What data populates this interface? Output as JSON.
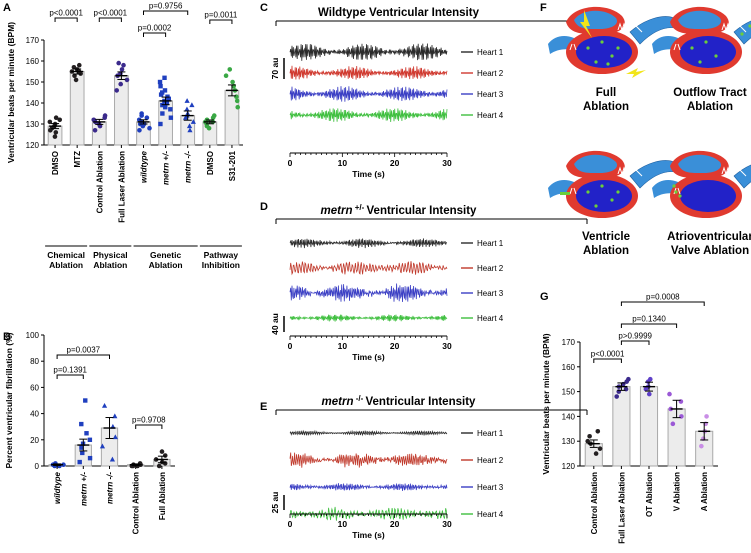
{
  "panels": {
    "A": {
      "letter": "A",
      "chart_data": {
        "type": "bar",
        "ylabel": "Ventricular beats per minute (BPM)",
        "ylim": [
          120,
          170
        ],
        "yticks": [
          120,
          130,
          140,
          150,
          160,
          170
        ],
        "categories": [
          "DMSO",
          "MTZ",
          "Control Ablation",
          "Full Laser Ablation",
          "wildtype",
          "metrn +/-",
          "metrn -/-",
          "DMSO",
          "S31-201"
        ],
        "italic": [
          false,
          false,
          false,
          false,
          true,
          true,
          true,
          false,
          false
        ],
        "colors": [
          "#231f20",
          "#231f20",
          "#3b2a8c",
          "#3b2a8c",
          "#1f3fbf",
          "#1f3fbf",
          "#1f3fbf",
          "#3aa845",
          "#3aa845"
        ],
        "values": [
          129,
          155,
          131,
          153,
          131,
          141,
          134,
          131,
          146
        ],
        "errors": [
          1.2,
          1.2,
          1.2,
          1.8,
          1.0,
          1.8,
          2.2,
          0.9,
          2.6
        ],
        "points": [
          [
            124,
            126,
            127,
            128,
            129,
            130,
            131,
            132,
            133
          ],
          [
            151,
            153,
            154,
            155,
            155,
            156,
            157,
            158
          ],
          [
            127,
            129,
            130,
            131,
            132,
            133,
            134
          ],
          [
            146,
            149,
            151,
            153,
            154,
            156,
            158,
            159
          ],
          [
            127,
            128,
            129,
            130,
            130,
            131,
            132,
            133,
            134,
            135
          ],
          [
            130,
            133,
            135,
            137,
            138,
            139,
            140,
            141,
            142,
            143,
            144,
            145,
            146,
            148,
            150,
            152
          ],
          [
            127,
            129,
            131,
            133,
            134,
            135,
            137,
            139,
            141
          ],
          [
            128,
            129,
            130,
            131,
            131,
            132,
            133,
            134
          ],
          [
            138,
            141,
            143,
            146,
            148,
            150,
            153,
            156
          ]
        ],
        "markers": [
          "circle",
          "circle",
          "circle",
          "circle",
          "circle",
          "square",
          "triangle",
          "circle",
          "circle"
        ],
        "comparisons": [
          {
            "from": 0,
            "to": 1,
            "label": "p<0.0001"
          },
          {
            "from": 2,
            "to": 3,
            "label": "p<0.0001"
          },
          {
            "from": 4,
            "to": 5,
            "label": "p=0.0002"
          },
          {
            "from": 4,
            "to": 6,
            "label": "p=0.9756"
          },
          {
            "from": 7,
            "to": 8,
            "label": "p=0.0011"
          }
        ],
        "groups": [
          {
            "label": [
              "Chemical",
              "Ablation"
            ],
            "from": 0,
            "to": 1
          },
          {
            "label": [
              "Physical",
              "Ablation"
            ],
            "from": 2,
            "to": 3
          },
          {
            "label": [
              "Genetic",
              "Ablation"
            ],
            "from": 4,
            "to": 6
          },
          {
            "label": [
              "Pathway",
              "Inhibition"
            ],
            "from": 7,
            "to": 8
          }
        ]
      }
    },
    "B": {
      "letter": "B",
      "chart_data": {
        "type": "bar",
        "ylabel": "Percent ventricular fibrillation (%)",
        "ylim": [
          0,
          100
        ],
        "yticks": [
          0,
          20,
          40,
          60,
          80,
          100
        ],
        "categories": [
          "wildtype",
          "metrn +/-",
          "metrn -/-",
          "Control Ablation",
          "Full Ablation"
        ],
        "italic": [
          true,
          true,
          true,
          false,
          false
        ],
        "colors": [
          "#1f3fbf",
          "#1f3fbf",
          "#1f3fbf",
          "#231f20",
          "#231f20"
        ],
        "values": [
          1,
          16,
          29,
          1,
          5
        ],
        "errors": [
          0.6,
          4.5,
          8,
          0.6,
          2.5
        ],
        "points": [
          [
            0,
            1,
            1,
            2,
            0
          ],
          [
            3,
            6,
            10,
            14,
            17,
            20,
            25,
            32,
            50
          ],
          [
            5,
            15,
            22,
            30,
            38,
            46
          ],
          [
            0,
            0,
            1,
            0,
            2,
            1
          ],
          [
            0,
            2,
            5,
            8,
            11,
            3
          ]
        ],
        "markers": [
          "circle",
          "square",
          "triangle",
          "circle",
          "circle"
        ],
        "comparisons": [
          {
            "from": 0,
            "to": 1,
            "label": "p=0.1391"
          },
          {
            "from": 0,
            "to": 2,
            "label": "p=0.0037"
          },
          {
            "from": 3,
            "to": 4,
            "label": "p=0.9708"
          }
        ]
      }
    },
    "C": {
      "letter": "C",
      "title": "Wildtype Ventricular Intensity",
      "title_parts": [],
      "xlabel": "Time (s)",
      "xticks": [
        0,
        10,
        20,
        30
      ],
      "scale_label": "70 au",
      "traces": [
        {
          "name": "Heart 1",
          "color": "#2b2b2b",
          "amp": 0.95,
          "freq": 2.7,
          "noise": 0.1
        },
        {
          "name": "Heart 2",
          "color": "#d0392f",
          "amp": 0.75,
          "freq": 2.6,
          "noise": 0.1
        },
        {
          "name": "Heart 3",
          "color": "#3b3fc4",
          "amp": 0.85,
          "freq": 2.6,
          "noise": 0.1
        },
        {
          "name": "Heart 4",
          "color": "#3fbf3f",
          "amp": 0.75,
          "freq": 2.6,
          "noise": 0.1
        }
      ]
    },
    "D": {
      "letter": "D",
      "title_parts": [
        {
          "t": "metrn",
          "i": true
        },
        {
          "t": " +/- ",
          "sup": true
        },
        {
          "t": "Ventricular Intensity",
          "i": false
        }
      ],
      "xlabel": "Time (s)",
      "xticks": [
        0,
        10,
        20,
        30
      ],
      "scale_label": "40 au",
      "traces": [
        {
          "name": "Heart 1",
          "color": "#2b2b2b",
          "amp": 0.45,
          "freq": 2.5,
          "noise": 0.15
        },
        {
          "name": "Heart 2",
          "color": "#c0392b",
          "amp": 0.55,
          "freq": 1.4,
          "noise": 0.35
        },
        {
          "name": "Heart 3",
          "color": "#3b3fc4",
          "amp": 0.85,
          "freq": 2.4,
          "noise": 0.25
        },
        {
          "name": "Heart 4",
          "color": "#3fbf3f",
          "amp": 0.35,
          "freq": 2.8,
          "noise": 0.1
        }
      ]
    },
    "E": {
      "letter": "E",
      "title_parts": [
        {
          "t": "metrn",
          "i": true
        },
        {
          "t": " -/- ",
          "sup": true
        },
        {
          "t": "Ventricular Intensity",
          "i": false
        }
      ],
      "xlabel": "Time (s)",
      "xticks": [
        0,
        10,
        20,
        30
      ],
      "scale_label": "25 au",
      "traces": [
        {
          "name": "Heart 1",
          "color": "#2b2b2b",
          "amp": 0.25,
          "freq": 2.2,
          "noise": 0.1
        },
        {
          "name": "Heart 2",
          "color": "#c0392b",
          "amp": 0.7,
          "freq": 2.0,
          "noise": 0.35
        },
        {
          "name": "Heart 3",
          "color": "#3b3fc4",
          "amp": 0.4,
          "freq": 2.4,
          "noise": 0.2
        },
        {
          "name": "Heart 4",
          "color": "#3fbf3f",
          "amp": 0.55,
          "freq": 1.3,
          "noise": 0.45
        }
      ]
    },
    "F": {
      "letter": "F",
      "labels": [
        [
          "Full",
          "Ablation"
        ],
        [
          "Outflow Tract",
          "Ablation"
        ],
        [
          "Ventricle",
          "Ablation"
        ],
        [
          "Atrioventricular",
          "Valve Ablation"
        ]
      ],
      "colors": {
        "atrium": "#3a8fd8",
        "ventricle": "#2222c8",
        "outer": "#e03a2f",
        "laser": "#f2e51a",
        "spot": "#6ccf3a"
      }
    },
    "G": {
      "letter": "G",
      "chart_data": {
        "type": "bar",
        "ylabel": "Ventricular beats per minute (BPM)",
        "ylim": [
          120,
          170
        ],
        "yticks": [
          120,
          130,
          140,
          150,
          160,
          170
        ],
        "categories": [
          "Control Ablation",
          "Full Laser Ablation",
          "OT Ablation",
          "V Ablation",
          "A Ablation"
        ],
        "italic": [
          false,
          false,
          false,
          false,
          false
        ],
        "colors": [
          "#231f20",
          "#3b2a8c",
          "#5e3fc8",
          "#9b59d6",
          "#c98ee6"
        ],
        "values": [
          129,
          152,
          152,
          143,
          134
        ],
        "errors": [
          1.5,
          1.5,
          1.8,
          3.5,
          3.5
        ],
        "points": [
          [
            125,
            127,
            129,
            130,
            132,
            134
          ],
          [
            148,
            150,
            151,
            152,
            153,
            154,
            155
          ],
          [
            149,
            151,
            152,
            154,
            155
          ],
          [
            137,
            140,
            143,
            146,
            149
          ],
          [
            128,
            131,
            134,
            137,
            140
          ]
        ],
        "markers": [
          "circle",
          "circle",
          "circle",
          "circle",
          "circle"
        ],
        "comparisons": [
          {
            "from": 0,
            "to": 1,
            "label": "p<0.0001"
          },
          {
            "from": 1,
            "to": 2,
            "label": "p>0.9999"
          },
          {
            "from": 1,
            "to": 3,
            "label": "p=0.1340"
          },
          {
            "from": 1,
            "to": 4,
            "label": "p=0.0008"
          }
        ]
      }
    }
  }
}
